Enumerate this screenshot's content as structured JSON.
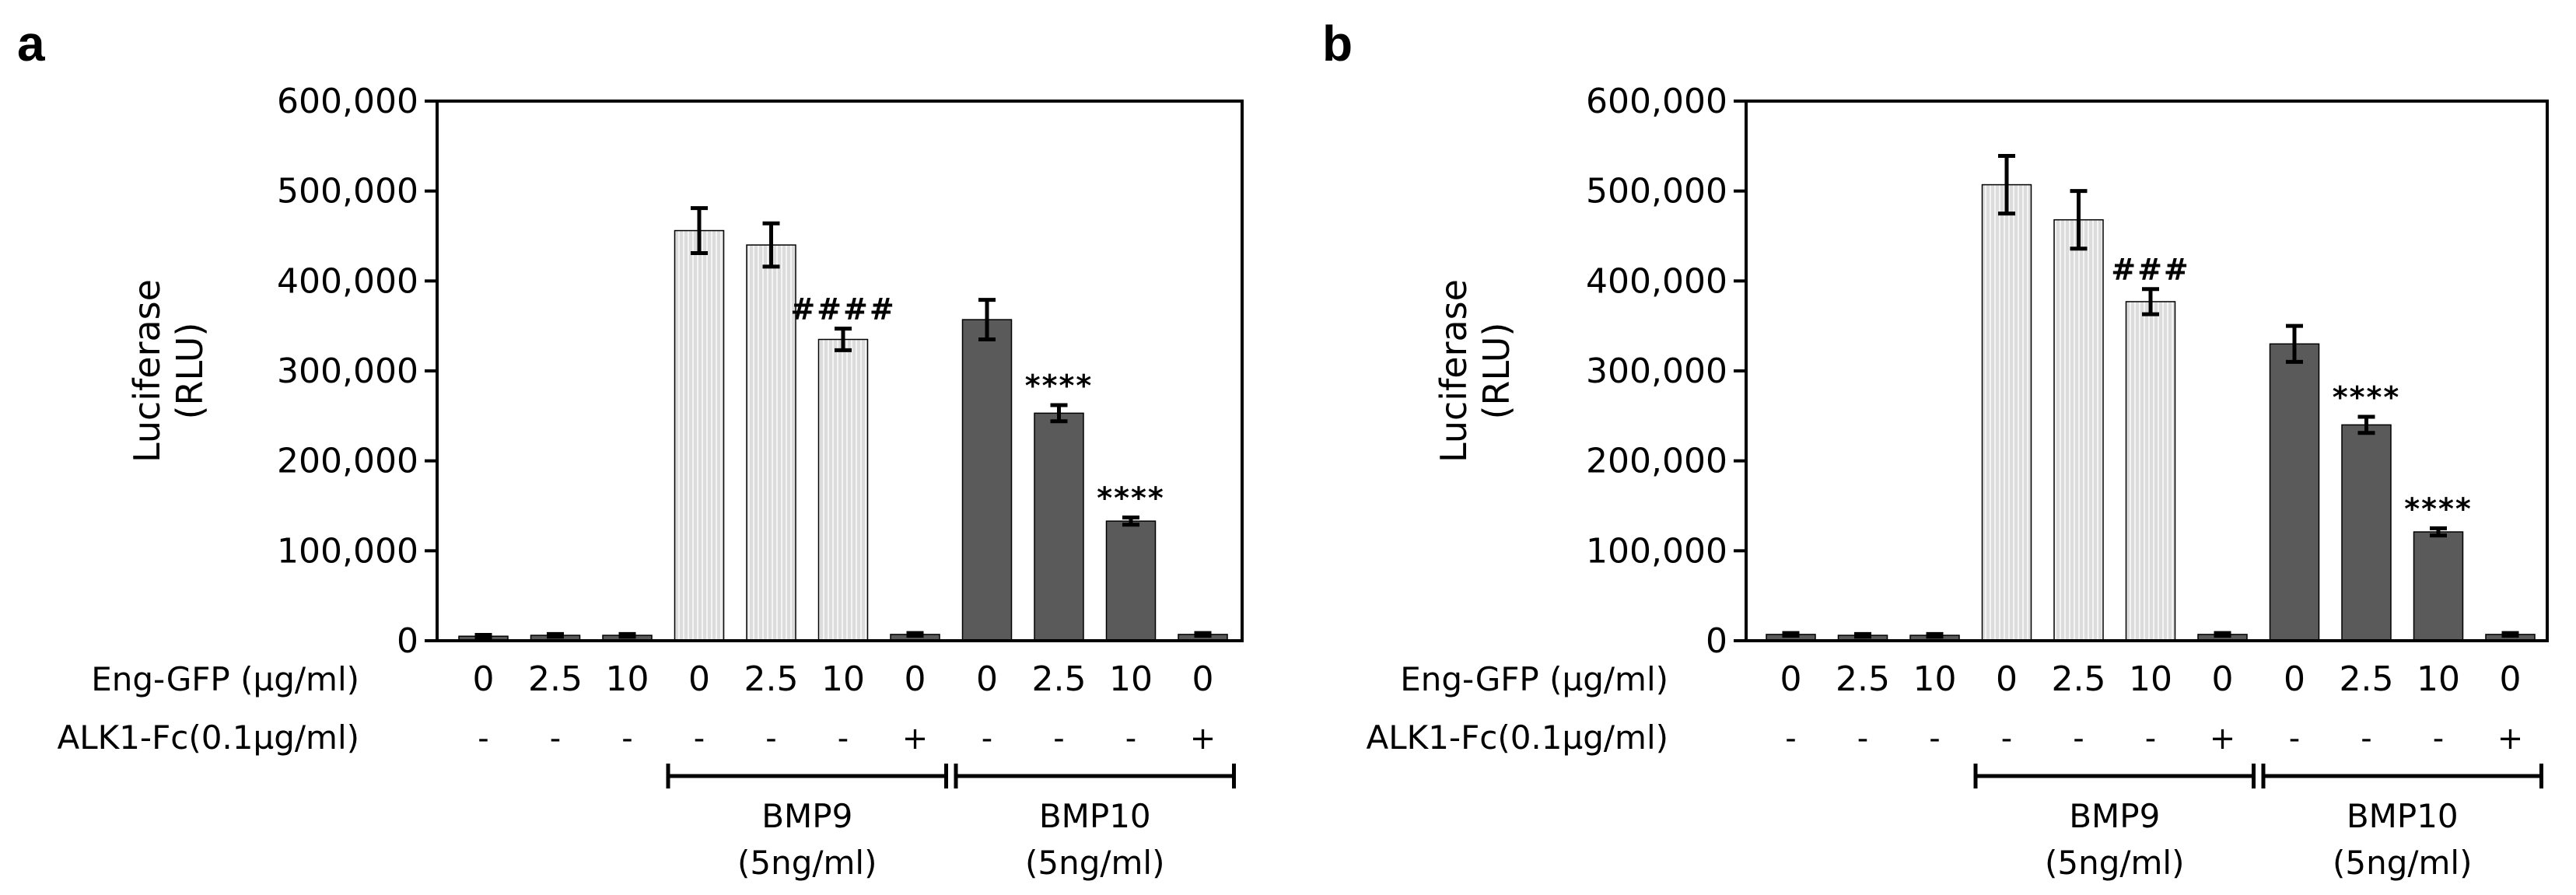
{
  "chart_data": [
    {
      "panel": "a",
      "type": "bar",
      "ylabel": "Luciferase",
      "ylabel2": "(RLU)",
      "ylim": [
        0,
        600000
      ],
      "ytick_values": [
        0,
        100000,
        200000,
        300000,
        400000,
        500000,
        600000
      ],
      "ytick_labels": [
        "0",
        "100,000",
        "200,000",
        "300,000",
        "400,000",
        "500,000",
        "600,000"
      ],
      "row1_label": "Eng-GFP (µg/ml)",
      "row2_label": "ALK1-Fc(0.1µg/ml)",
      "categories": [
        "0",
        "2.5",
        "10",
        "0",
        "2.5",
        "10",
        "0",
        "0",
        "2.5",
        "10",
        "0"
      ],
      "alk1": [
        "-",
        "-",
        "-",
        "-",
        "-",
        "-",
        "+",
        "-",
        "-",
        "-",
        "+"
      ],
      "values": [
        5000,
        6000,
        6000,
        456000,
        440000,
        335000,
        7000,
        357000,
        253000,
        133000,
        7000
      ],
      "errors": [
        1500,
        1500,
        1500,
        25000,
        24000,
        12000,
        1500,
        22000,
        9000,
        4000,
        1500
      ],
      "groups": [
        "none",
        "none",
        "none",
        "bmp9",
        "bmp9",
        "bmp9",
        "bmp9",
        "bmp10",
        "bmp10",
        "bmp10",
        "bmp10"
      ],
      "annotations": [
        "",
        "",
        "",
        "",
        "",
        "####",
        "",
        "",
        "****",
        "****",
        ""
      ],
      "brackets": [
        {
          "line1": "BMP9",
          "line2": "(5ng/ml)"
        },
        {
          "line1": "BMP10",
          "line2": "(5ng/ml)"
        }
      ]
    },
    {
      "panel": "b",
      "type": "bar",
      "ylabel": "Luciferase",
      "ylabel2": "(RLU)",
      "ylim": [
        0,
        600000
      ],
      "ytick_values": [
        0,
        100000,
        200000,
        300000,
        400000,
        500000,
        600000
      ],
      "ytick_labels": [
        "0",
        "100,000",
        "200,000",
        "300,000",
        "400,000",
        "500,000",
        "600,000"
      ],
      "row1_label": "Eng-GFP (µg/ml)",
      "row2_label": "ALK1-Fc(0.1µg/ml)",
      "categories": [
        "0",
        "2.5",
        "10",
        "0",
        "2.5",
        "10",
        "0",
        "0",
        "2.5",
        "10",
        "0"
      ],
      "alk1": [
        "-",
        "-",
        "-",
        "-",
        "-",
        "-",
        "+",
        "-",
        "-",
        "-",
        "+"
      ],
      "values": [
        7000,
        6000,
        6000,
        507000,
        468000,
        377000,
        7000,
        330000,
        240000,
        121000,
        7000
      ],
      "errors": [
        1500,
        1500,
        1500,
        32000,
        32000,
        14000,
        1500,
        20000,
        9000,
        4000,
        1500
      ],
      "groups": [
        "none",
        "none",
        "none",
        "bmp9",
        "bmp9",
        "bmp9",
        "bmp9",
        "bmp10",
        "bmp10",
        "bmp10",
        "bmp10"
      ],
      "annotations": [
        "",
        "",
        "",
        "",
        "",
        "###",
        "",
        "",
        "****",
        "****",
        ""
      ],
      "brackets": [
        {
          "line1": "BMP9",
          "line2": "(5ng/ml)"
        },
        {
          "line1": "BMP10",
          "line2": "(5ng/ml)"
        }
      ]
    }
  ],
  "colors": {
    "bmp9_fill": "#dcdcdc",
    "bmp9_stripe": "#f4f4f4",
    "bmp10_fill": "#5a5a5a",
    "none_fill": "#5a5a5a",
    "line": "#000000"
  }
}
